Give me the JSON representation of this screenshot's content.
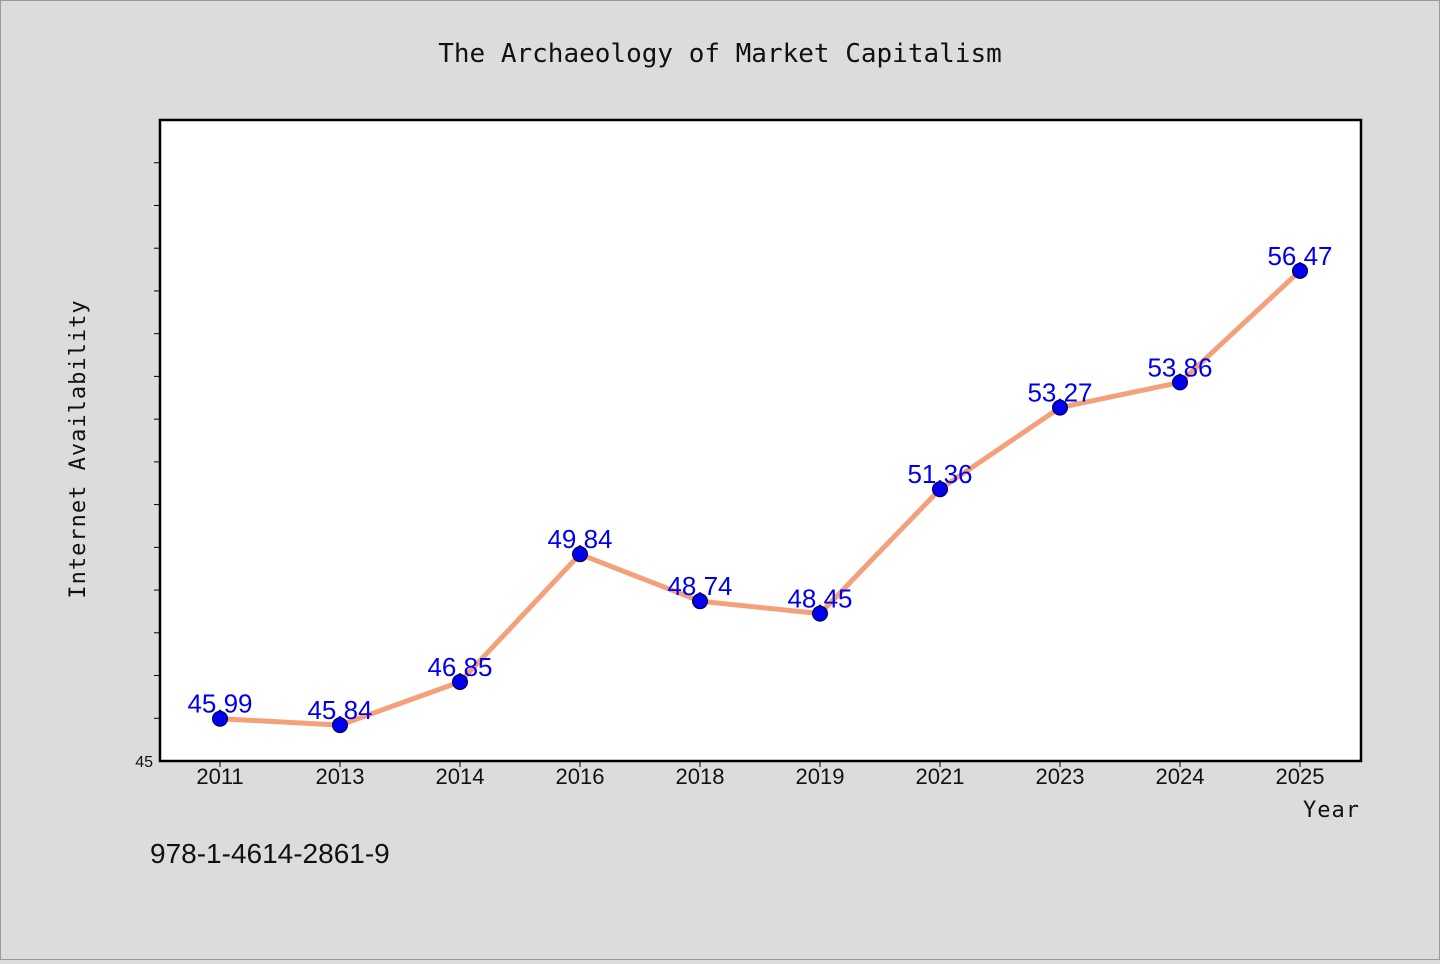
{
  "chart_data": {
    "type": "line",
    "title": "The Archaeology of Market Capitalism",
    "xlabel": "Year",
    "ylabel": "Internet Availability",
    "categories": [
      "2011",
      "2013",
      "2014",
      "2016",
      "2018",
      "2019",
      "2021",
      "2023",
      "2024",
      "2025"
    ],
    "series": [
      {
        "values": [
          45.99,
          45.84,
          46.85,
          49.84,
          48.74,
          48.45,
          51.36,
          53.27,
          53.86,
          56.47
        ]
      }
    ],
    "y_tick_labels": [
      "45"
    ],
    "ylim": [
      45,
      60
    ],
    "grid": false,
    "data_labels": true,
    "colors": {
      "line": "#f4a07a",
      "marker": "#0000ee",
      "data_label": "#0000ee",
      "background": "#dcdcdc",
      "plot_background": "#ffffff"
    }
  },
  "footer": {
    "isbn": "978-1-4614-2861-9"
  }
}
